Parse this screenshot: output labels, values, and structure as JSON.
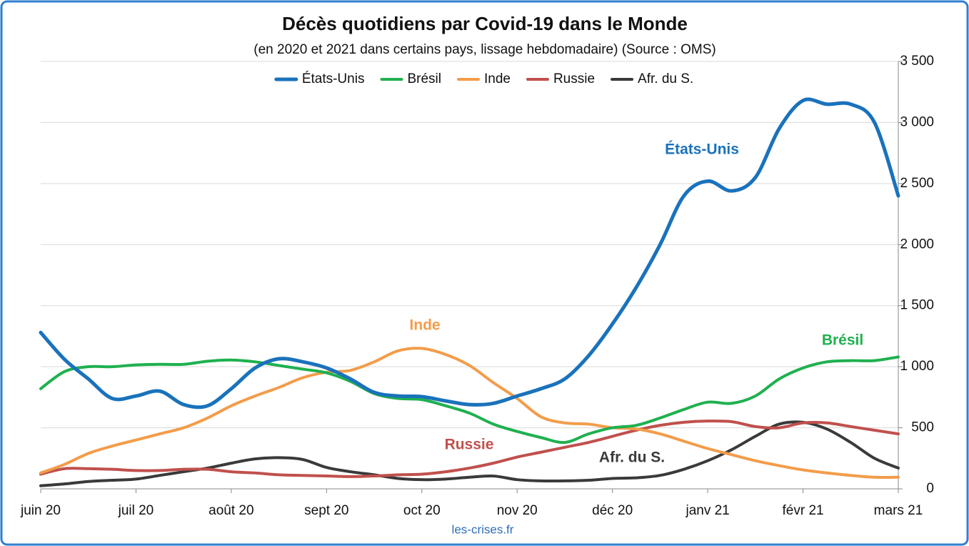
{
  "chart_data": {
    "type": "line",
    "title": "Décès quotidiens par Covid-19 dans le Monde",
    "subtitle": "(en 2020 et 2021 dans certains pays, lissage hebdomadaire) (Source : OMS)",
    "source": "les-crises.fr",
    "categories": [
      "juin 20",
      null,
      null,
      null,
      "juil 20",
      null,
      null,
      null,
      "août 20",
      null,
      null,
      null,
      "sept 20",
      null,
      null,
      null,
      "oct 20",
      null,
      null,
      null,
      "nov 20",
      null,
      null,
      null,
      "déc 20",
      null,
      null,
      null,
      "janv 21",
      null,
      null,
      null,
      "févr 21",
      null,
      null,
      null,
      "mars 21"
    ],
    "series": [
      {
        "name": "États-Unis",
        "color": "#1a72bb",
        "values": [
          1280,
          1060,
          900,
          740,
          760,
          800,
          690,
          680,
          820,
          990,
          1065,
          1040,
          990,
          900,
          790,
          760,
          755,
          720,
          690,
          700,
          760,
          820,
          900,
          1090,
          1350,
          1650,
          2000,
          2400,
          2520,
          2440,
          2550,
          2950,
          3180,
          3150,
          3150,
          3000,
          2400
        ]
      },
      {
        "name": "Brésil",
        "color": "#1fb04f",
        "values": [
          820,
          960,
          1000,
          1000,
          1015,
          1020,
          1020,
          1045,
          1055,
          1040,
          1010,
          980,
          950,
          880,
          780,
          740,
          730,
          680,
          620,
          530,
          470,
          420,
          380,
          450,
          500,
          520,
          580,
          650,
          710,
          700,
          760,
          900,
          990,
          1040,
          1050,
          1050,
          1080
        ]
      },
      {
        "name": "Inde",
        "color": "#f39c4a",
        "values": [
          130,
          200,
          290,
          350,
          400,
          450,
          500,
          580,
          680,
          760,
          830,
          910,
          955,
          970,
          1040,
          1130,
          1150,
          1100,
          1010,
          870,
          740,
          590,
          540,
          530,
          500,
          490,
          450,
          390,
          330,
          280,
          230,
          190,
          155,
          130,
          110,
          95,
          95
        ]
      },
      {
        "name": "Russie",
        "color": "#c0504d",
        "values": [
          120,
          165,
          165,
          160,
          150,
          150,
          160,
          160,
          140,
          130,
          115,
          110,
          105,
          100,
          105,
          115,
          120,
          140,
          170,
          210,
          260,
          300,
          340,
          380,
          430,
          480,
          520,
          545,
          555,
          550,
          510,
          500,
          540,
          540,
          510,
          480,
          450
        ]
      },
      {
        "name": "Afr. du S.",
        "color": "#3a3a3a",
        "values": [
          25,
          40,
          60,
          70,
          80,
          110,
          140,
          170,
          210,
          245,
          255,
          240,
          175,
          140,
          115,
          85,
          75,
          80,
          95,
          105,
          75,
          65,
          65,
          70,
          85,
          90,
          110,
          160,
          230,
          320,
          430,
          530,
          545,
          490,
          380,
          250,
          170
        ]
      }
    ],
    "annotations": [
      "États-Unis",
      "Brésil",
      "Inde",
      "Russie",
      "Afr. du S."
    ],
    "ylim": [
      0,
      3500
    ],
    "yticks": [
      0,
      {
        "value": 500,
        "label": "500"
      },
      {
        "value": 1000,
        "label": "1 000"
      },
      {
        "value": 1500,
        "label": "1 500"
      },
      {
        "value": 2000,
        "label": "2 000"
      },
      {
        "value": 2500,
        "label": "2 500"
      },
      {
        "value": 3000,
        "label": "3 000"
      },
      {
        "value": 3500,
        "label": "3 500"
      }
    ],
    "grid": true,
    "legend": "top"
  }
}
